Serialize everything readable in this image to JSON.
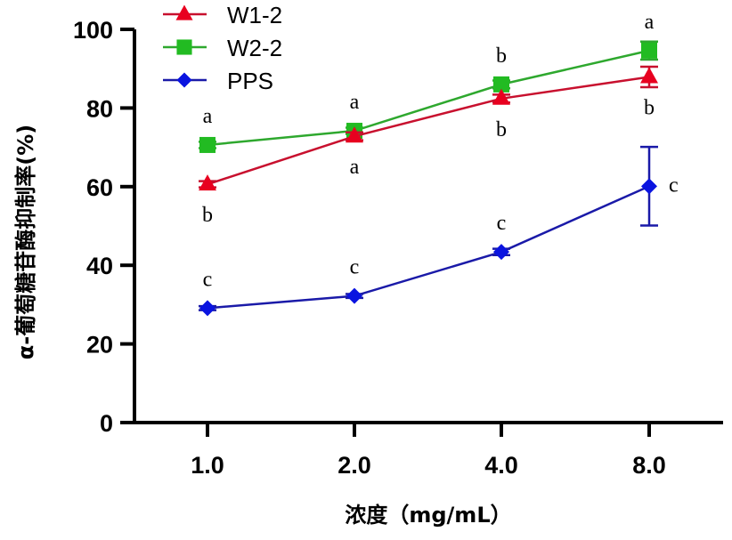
{
  "chart_data": {
    "type": "line",
    "title": "",
    "xlabel": "浓度（mg/mL）",
    "ylabel": "α-葡萄糖苷酶抑制率(%)",
    "categories": [
      "1.0",
      "2.0",
      "4.0",
      "8.0"
    ],
    "yticks": [
      "0",
      "20",
      "40",
      "60",
      "80",
      "100"
    ],
    "ylim": [
      0,
      100
    ],
    "grid": false,
    "legend_position": "top-left",
    "series": [
      {
        "name": "W1-2",
        "color": "#e8001f",
        "line_color": "#c8102e",
        "marker": "triangle",
        "values": [
          60.6,
          72.8,
          82.4,
          87.9
        ],
        "errors": [
          0.8,
          1.0,
          1.0,
          2.6
        ],
        "sig_labels": [
          "b",
          "a",
          "b",
          "b"
        ],
        "sig_label_position": [
          "below",
          "below",
          "below",
          "below"
        ]
      },
      {
        "name": "W2-2",
        "color": "#22bb22",
        "line_color": "#2ea82e",
        "marker": "square",
        "values": [
          70.6,
          74.2,
          86.0,
          94.6
        ],
        "errors": [
          0.8,
          0.8,
          1.0,
          2.3
        ],
        "sig_labels": [
          "a",
          "a",
          "b",
          "a"
        ],
        "sig_label_position": [
          "above",
          "above",
          "above",
          "above"
        ]
      },
      {
        "name": "PPS",
        "color": "#0a14e0",
        "line_color": "#1a1aa8",
        "marker": "diamond",
        "values": [
          29.1,
          32.2,
          43.4,
          60.1
        ],
        "errors": [
          0.5,
          0.5,
          0.8,
          10.0
        ],
        "sig_labels": [
          "c",
          "c",
          "c",
          "c"
        ],
        "sig_label_position": [
          "above",
          "above",
          "above",
          "right"
        ]
      }
    ]
  }
}
